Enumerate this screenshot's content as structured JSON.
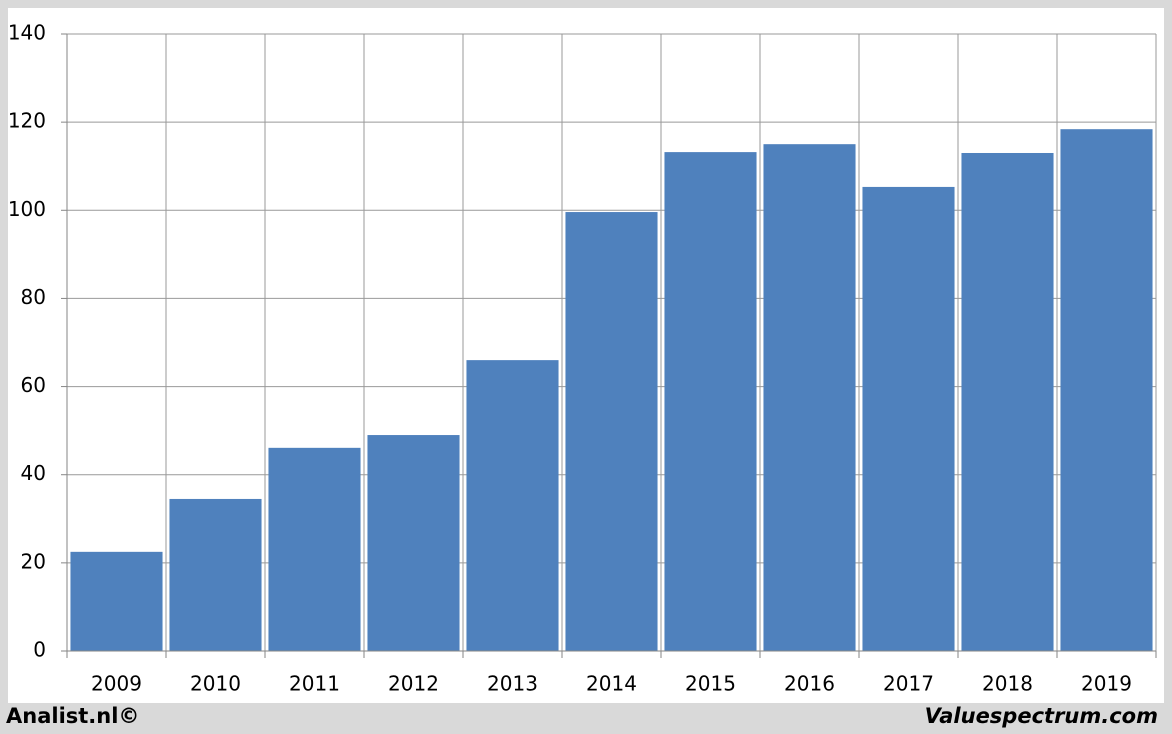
{
  "chart_data": {
    "type": "bar",
    "categories": [
      "2009",
      "2010",
      "2011",
      "2012",
      "2013",
      "2014",
      "2015",
      "2016",
      "2017",
      "2018",
      "2019"
    ],
    "values": [
      22.5,
      34.5,
      46.1,
      49.0,
      66.0,
      99.6,
      113.2,
      115.0,
      105.3,
      113.0,
      118.4
    ],
    "color": "#4f81bd",
    "ylim": [
      0,
      140
    ],
    "yticks": [
      0,
      20,
      40,
      60,
      80,
      100,
      120,
      140
    ],
    "grid": true,
    "annotations": [
      "Analist.nl©",
      "Valuespectrum.com"
    ]
  }
}
